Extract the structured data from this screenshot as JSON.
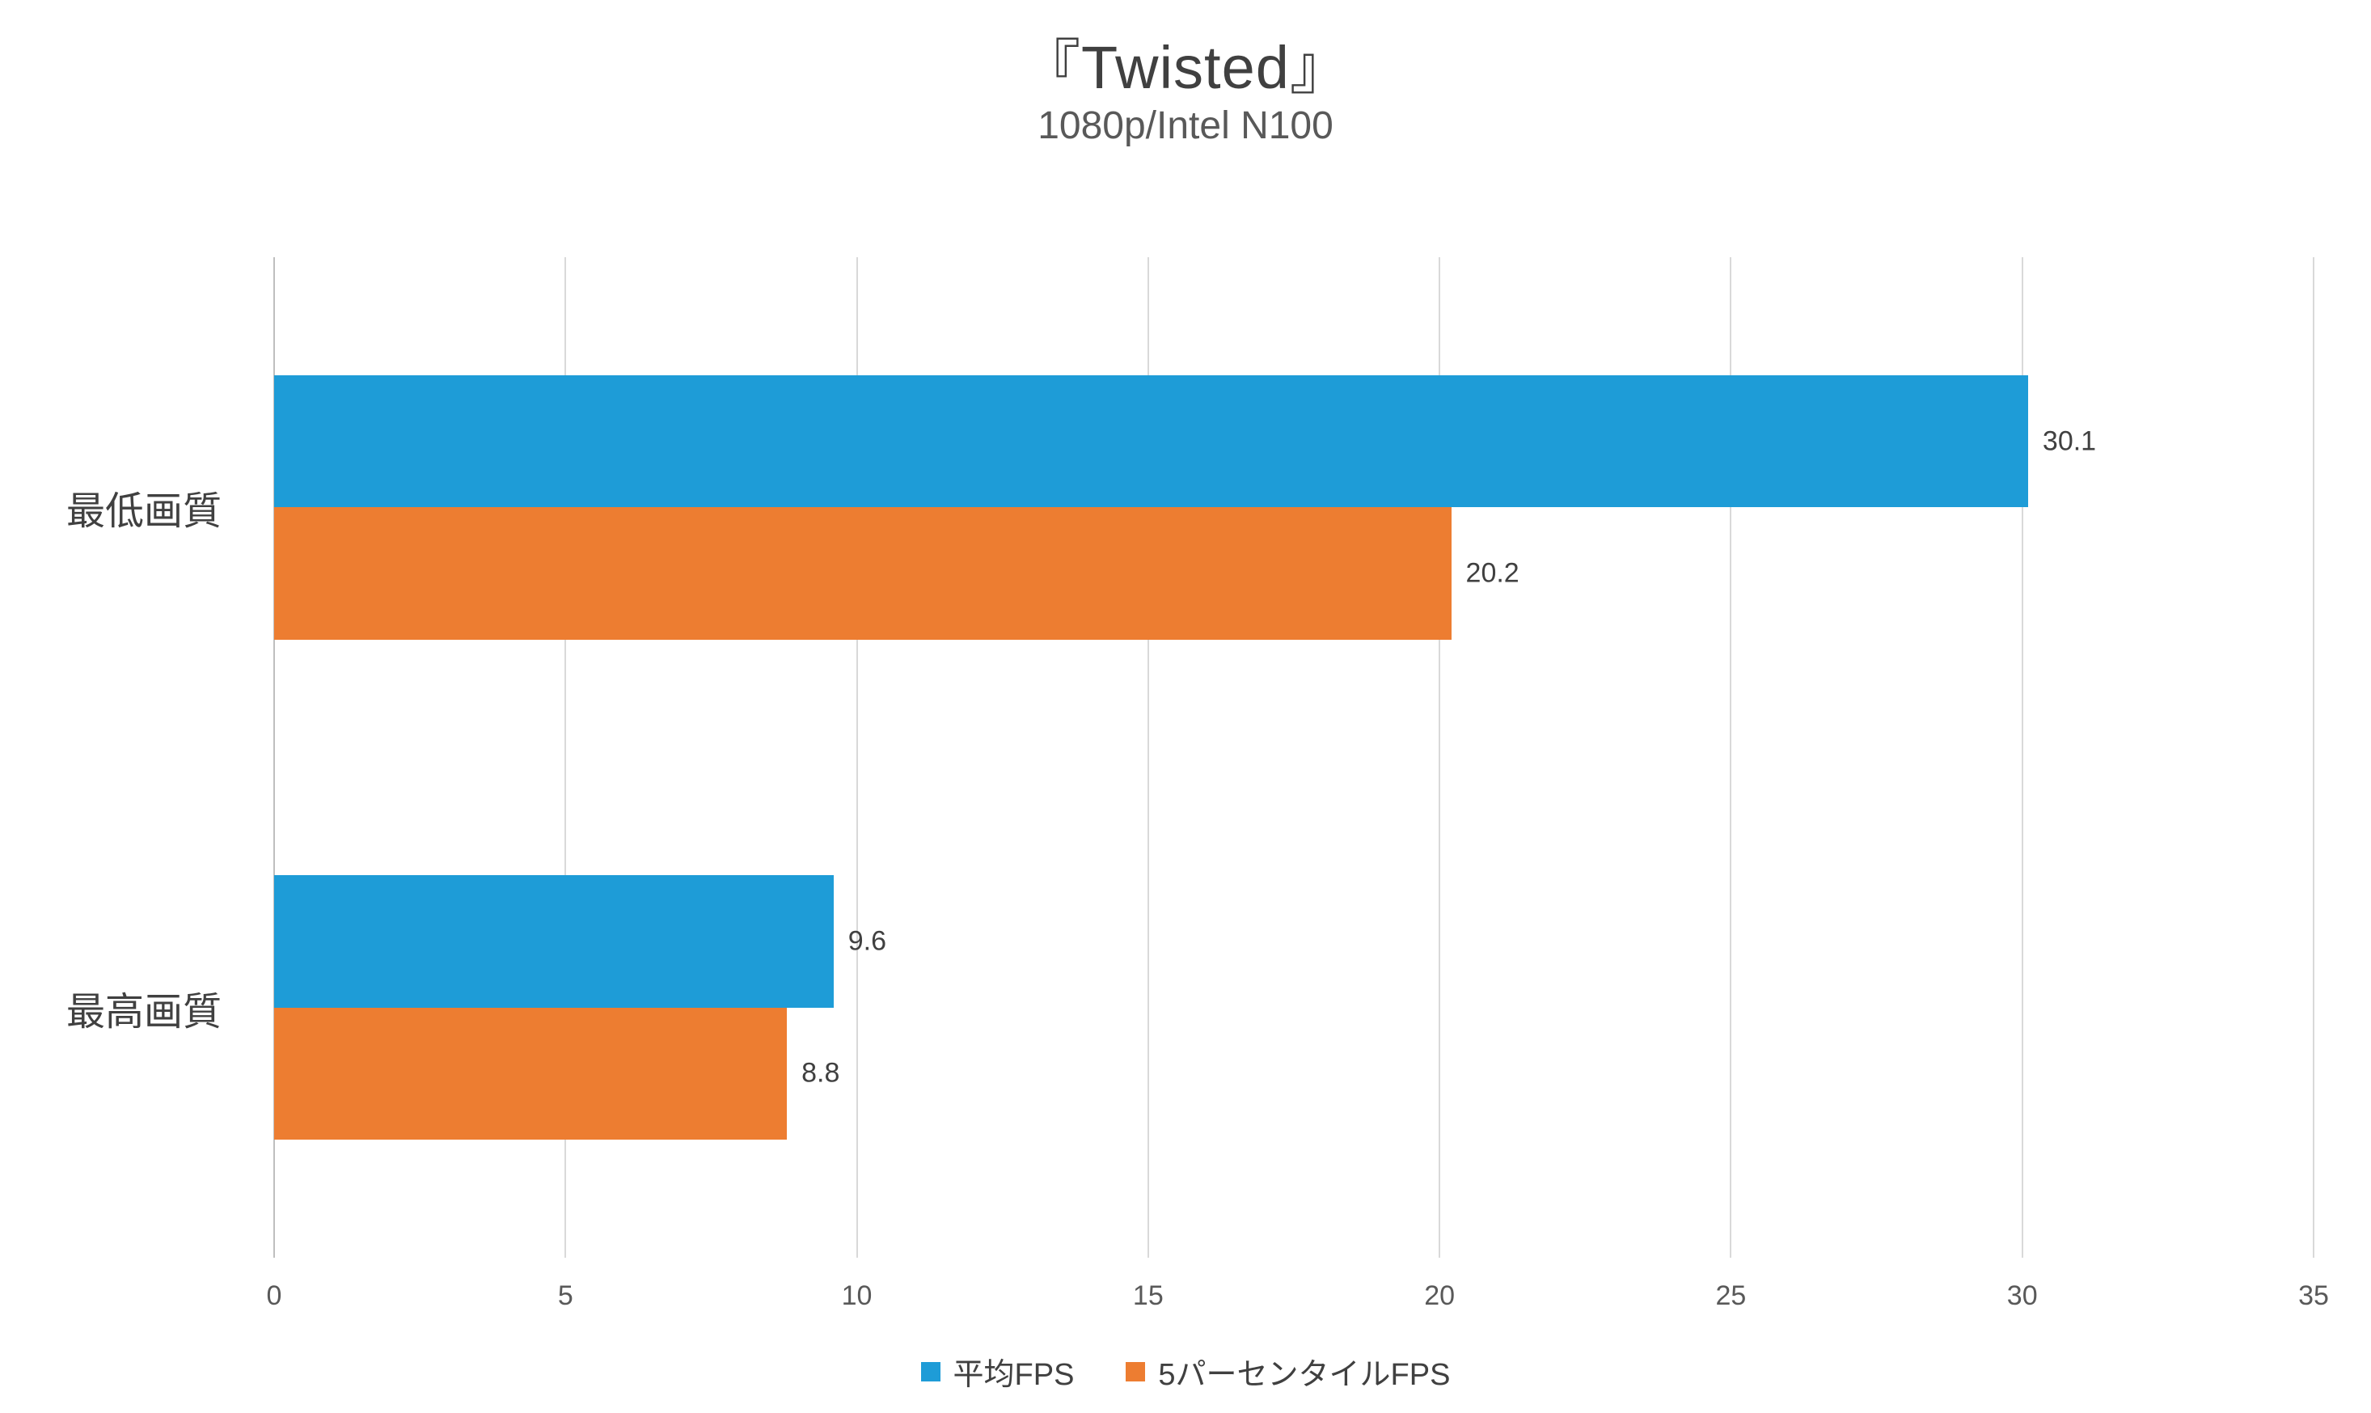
{
  "chart_data": {
    "type": "bar",
    "orientation": "horizontal",
    "title": "『Twisted』",
    "subtitle": "1080p/Intel N100",
    "categories": [
      "最低画質",
      "最高画質"
    ],
    "series": [
      {
        "name": "平均FPS",
        "color": "#1e9cd7",
        "values": [
          30.1,
          9.6
        ]
      },
      {
        "name": "5パーセンタイルFPS",
        "color": "#ed7d31",
        "values": [
          20.2,
          8.8
        ]
      }
    ],
    "value_labels": [
      [
        "30.1",
        "9.6"
      ],
      [
        "20.2",
        "8.8"
      ]
    ],
    "xlim": [
      0,
      35
    ],
    "xticks": [
      0,
      5,
      10,
      15,
      20,
      25,
      30,
      35
    ],
    "grid": true,
    "legend_position": "bottom",
    "colors": {
      "gridline": "#d9d9d9",
      "axis_line": "#bfbfbf",
      "title_text": "#404040",
      "subtitle_text": "#595959",
      "tick_text": "#595959",
      "value_text": "#404040"
    }
  }
}
